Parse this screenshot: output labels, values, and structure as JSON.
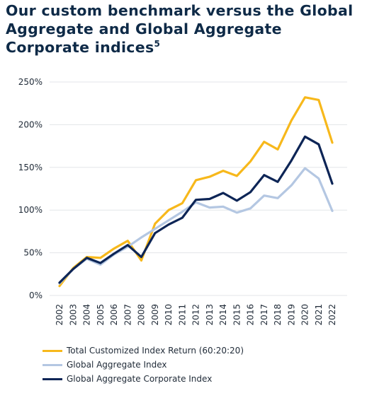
{
  "title": {
    "text": "Our custom benchmark versus the Global Aggregate  and Global Aggregate Corporate indices",
    "footnote": "5"
  },
  "colors": {
    "total": "#f7b81b",
    "aggregate": "#b4c7e2",
    "corporate": "#0d2556",
    "grid": "#e3e5e8"
  },
  "chart_data": {
    "type": "line",
    "x": [
      "2002",
      "2003",
      "2004",
      "2005",
      "2006",
      "2007",
      "2008",
      "2009",
      "2010",
      "2011",
      "2012",
      "2013",
      "2014",
      "2015",
      "2016",
      "2017",
      "2018",
      "2019",
      "2020",
      "2021",
      "2022"
    ],
    "series": [
      {
        "name": "Total Customized Index Return (60:20:20)",
        "color_key": "total",
        "values": [
          11,
          32,
          45,
          44,
          55,
          64,
          41,
          84,
          100,
          108,
          135,
          139,
          146,
          140,
          157,
          180,
          171,
          205,
          232,
          229,
          179
        ]
      },
      {
        "name": "Global Aggregate Index",
        "color_key": "aggregate",
        "values": [
          14,
          31,
          43,
          36,
          48,
          57,
          68,
          78,
          88,
          98,
          109,
          103,
          104,
          97,
          102,
          117,
          114,
          129,
          149,
          137,
          99
        ]
      },
      {
        "name": "Global Aggregate Corporate Index",
        "color_key": "corporate",
        "values": [
          15,
          31,
          44,
          38,
          49,
          59,
          45,
          73,
          83,
          91,
          112,
          113,
          120,
          111,
          121,
          141,
          133,
          158,
          186,
          177,
          131
        ]
      }
    ],
    "ylim": [
      0,
      250
    ],
    "yticks": [
      0,
      50,
      100,
      150,
      200,
      250
    ],
    "ytick_labels": [
      "0%",
      "50%",
      "100%",
      "150%",
      "200%",
      "250%"
    ],
    "grid": "horizontal",
    "legend": "bottom"
  }
}
